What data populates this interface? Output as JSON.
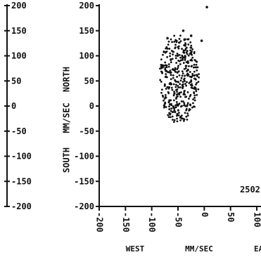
{
  "chart_data": {
    "type": "scatter",
    "x_unit_label": "MM/SEC",
    "x_left_label": "WEST",
    "x_right_label_partial": "EA",
    "y_unit_label": "MM/SEC",
    "y_top_label": "NORTH",
    "y_bottom_label": "SOUTH",
    "annotation": "2502",
    "outer_y_ticks": [
      "200",
      "150",
      "100",
      "50",
      "0",
      "-50",
      "-100",
      "-150",
      "-200"
    ],
    "y_ticks": [
      200,
      150,
      100,
      50,
      0,
      -50,
      -100,
      -150,
      -200
    ],
    "x_ticks": [
      -200,
      -150,
      -100,
      -50,
      0,
      50,
      100
    ],
    "xlim": [
      -200,
      108
    ],
    "ylim": [
      -200,
      200
    ],
    "grid": false,
    "cloud": {
      "center_x": -48,
      "center_y": 55,
      "spread_x": 38,
      "spread_y": 90,
      "n_points": 420,
      "seed": 2502
    },
    "extra_points": [
      {
        "x": 5,
        "y": 197
      },
      {
        "x": -40,
        "y": 150
      },
      {
        "x": -25,
        "y": 140
      },
      {
        "x": -70,
        "y": 135
      },
      {
        "x": -5,
        "y": 130
      }
    ],
    "colors": {
      "ink": "#111111",
      "background": "#ffffff"
    }
  }
}
